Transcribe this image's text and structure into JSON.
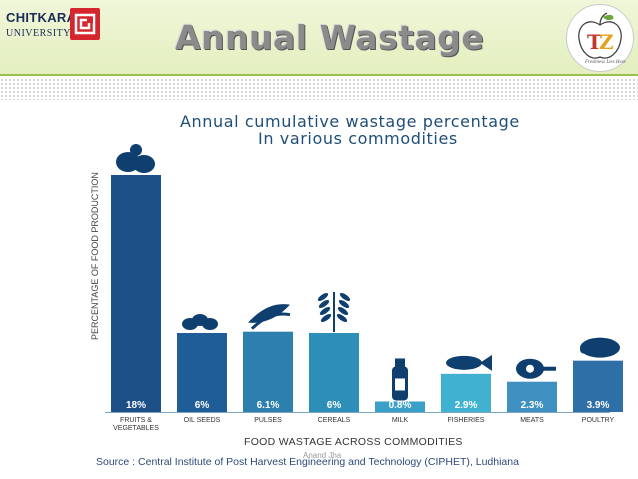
{
  "header": {
    "logo_line1": "CHITKARA",
    "logo_line2": "UNIVERSITY",
    "title": "Annual Wastage",
    "badge_icon": "apple-tz-logo-icon",
    "badge_tagline": "Freshness Lies Here"
  },
  "chart_data": {
    "type": "bar",
    "title_line1": "Annual cumulative wastage percentage",
    "title_line2": "In various commodities",
    "ylabel": "PERCENTAGE OF FOOD PRODUCTION",
    "xlabel": "FOOD WASTAGE ACROSS COMMODITIES",
    "categories": [
      [
        "FRUITS &",
        "VEGETABLES"
      ],
      [
        "OIL SEEDS"
      ],
      [
        "PULSES"
      ],
      [
        "CEREALS"
      ],
      [
        "MILK"
      ],
      [
        "FISHERIES"
      ],
      [
        "MEATS"
      ],
      [
        "POULTRY"
      ]
    ],
    "values": [
      18,
      6,
      6.1,
      6,
      0.8,
      2.9,
      2.3,
      3.9
    ],
    "value_labels": [
      "18%",
      "6%",
      "6.1%",
      "6%",
      "0.8%",
      "2.9%",
      "2.3%",
      "3.9%"
    ],
    "icons": [
      "vegetables-icon",
      "seeds-icon",
      "peapod-icon",
      "wheat-icon",
      "milk-bottle-icon",
      "fish-icon",
      "meat-icon",
      "chicken-icon"
    ],
    "colors": [
      "#1b4f86",
      "#1f5d98",
      "#2d7fae",
      "#2d8fb8",
      "#3aa0c8",
      "#41b1d2",
      "#3f8fc0",
      "#2f6fa8"
    ],
    "ylim": [
      0,
      18
    ],
    "grid": false
  },
  "author": "Anand Jha",
  "source": "Source : Central Institute of Post Harvest Engineering and Technology (CIPHET), Ludhiana"
}
